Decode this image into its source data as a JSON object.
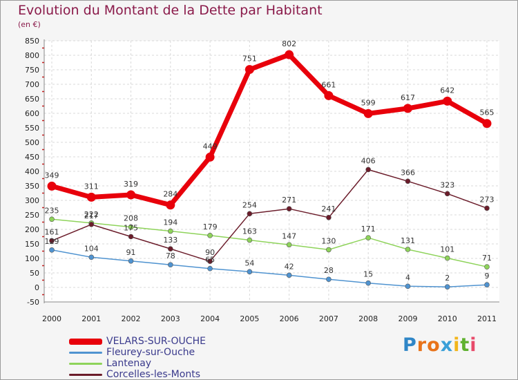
{
  "header": {
    "title": "Evolution du Montant de la Dette par Habitant",
    "subtitle": "(en €)"
  },
  "logo": {
    "letters": [
      "P",
      "r",
      "o",
      "x",
      "i",
      "t",
      "i"
    ],
    "colors": [
      "#2f86c7",
      "#e8731a",
      "#e8731a",
      "#3aa0d8",
      "#f2b51b",
      "#5fb12f",
      "#e84a6a"
    ]
  },
  "chart_data": {
    "type": "line",
    "title": "Evolution du Montant de la Dette par Habitant",
    "subtitle": "(en €)",
    "xlabel": "",
    "ylabel": "",
    "x": [
      "2000",
      "2001",
      "2002",
      "2003",
      "2004",
      "2005",
      "2006",
      "2007",
      "2008",
      "2009",
      "2010",
      "2011"
    ],
    "ylim": [
      -50,
      850
    ],
    "yticks": [
      -50,
      0,
      50,
      100,
      150,
      200,
      250,
      300,
      350,
      400,
      450,
      500,
      550,
      600,
      650,
      700,
      750,
      800,
      850
    ],
    "grid": true,
    "legend_position": "bottom-left",
    "series": [
      {
        "name": "VELARS-SUR-OUCHE",
        "color": "#e8000b",
        "thick": true,
        "values": [
          349,
          311,
          319,
          284,
          449,
          751,
          802,
          661,
          599,
          617,
          642,
          565
        ]
      },
      {
        "name": "Fleurey-sur-Ouche",
        "color": "#4f93d0",
        "thick": false,
        "values": [
          129,
          104,
          91,
          78,
          65,
          54,
          42,
          28,
          15,
          4,
          2,
          9
        ],
        "labels": [
          "129",
          "104",
          "91",
          "78",
          "65",
          "54",
          "42",
          "28",
          "15",
          "4",
          "2",
          "9"
        ]
      },
      {
        "name": "Lantenay",
        "color": "#8ed35a",
        "thick": false,
        "values": [
          235,
          222,
          208,
          194,
          179,
          163,
          147,
          130,
          171,
          131,
          101,
          71
        ]
      },
      {
        "name": "Corcelles-les-Monts",
        "color": "#6b1c2a",
        "thick": false,
        "values": [
          161,
          217,
          175,
          133,
          90,
          254,
          271,
          241,
          406,
          366,
          323,
          273
        ]
      }
    ]
  }
}
